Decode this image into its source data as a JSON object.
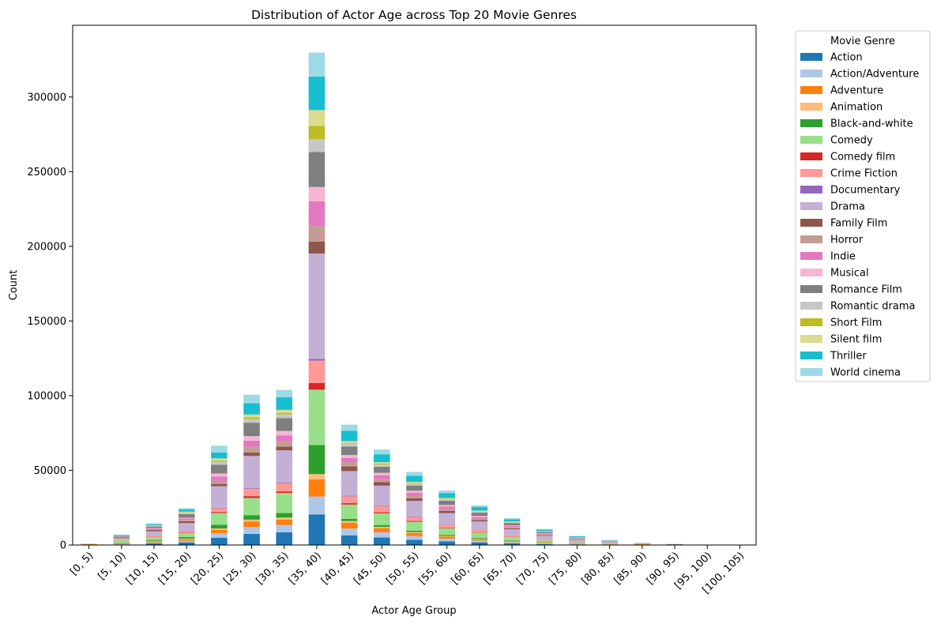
{
  "chart_data": {
    "type": "bar",
    "stacked": true,
    "title": "Distribution of Actor Age across Top 20 Movie Genres",
    "xlabel": "Actor Age Group",
    "ylabel": "Count",
    "ylim": [
      0,
      348000
    ],
    "yticks": [
      0,
      50000,
      100000,
      150000,
      200000,
      250000,
      300000
    ],
    "legend_title": "Movie Genre",
    "legend_position": "outside-top-right",
    "grid": false,
    "categories": [
      "[0, 5)",
      "[5, 10)",
      "[10, 15)",
      "[15, 20)",
      "[20, 25)",
      "[25, 30)",
      "[30, 35)",
      "[35, 40)",
      "[40, 45)",
      "[45, 50)",
      "[50, 55)",
      "[55, 60)",
      "[60, 65)",
      "[65, 70)",
      "[70, 75)",
      "[75, 80)",
      "[80, 85)",
      "[85, 90)",
      "[90, 95)",
      "[95, 100)",
      "[100, 105)"
    ],
    "series": [
      {
        "name": "Action",
        "color": "#1f77b4",
        "values": [
          80,
          400,
          1200,
          1800,
          4900,
          7500,
          8500,
          20500,
          6500,
          5000,
          3500,
          2500,
          1800,
          1200,
          600,
          350,
          200,
          150,
          40,
          10,
          5
        ]
      },
      {
        "name": "Action/Adventure",
        "color": "#aec7e8",
        "values": [
          40,
          250,
          500,
          1000,
          3000,
          4500,
          5000,
          12000,
          4500,
          3500,
          2500,
          1800,
          1200,
          700,
          400,
          200,
          100,
          80,
          20,
          5,
          2
        ]
      },
      {
        "name": "Adventure",
        "color": "#ff7f0e",
        "values": [
          400,
          500,
          700,
          1000,
          2200,
          3800,
          3500,
          11500,
          3900,
          2800,
          2000,
          1300,
          900,
          600,
          350,
          250,
          150,
          400,
          30,
          5,
          2
        ]
      },
      {
        "name": "Animation",
        "color": "#ffbb78",
        "values": [
          100,
          200,
          400,
          500,
          1000,
          1200,
          1400,
          3500,
          1200,
          900,
          700,
          500,
          400,
          300,
          200,
          150,
          100,
          50,
          10,
          5,
          1
        ]
      },
      {
        "name": "Black-and-white",
        "color": "#2ca02c",
        "values": [
          30,
          300,
          600,
          1000,
          2500,
          3000,
          3000,
          19500,
          1500,
          1200,
          900,
          700,
          500,
          400,
          250,
          150,
          80,
          40,
          10,
          2,
          1
        ]
      },
      {
        "name": "Comedy",
        "color": "#98df8a",
        "values": [
          50,
          1500,
          2000,
          2700,
          7800,
          11500,
          13500,
          37000,
          9500,
          7800,
          6000,
          4500,
          3500,
          2200,
          1300,
          700,
          400,
          100,
          50,
          10,
          5
        ]
      },
      {
        "name": "Comedy film",
        "color": "#d62728",
        "values": [
          10,
          100,
          200,
          300,
          700,
          1200,
          1000,
          4500,
          900,
          700,
          500,
          400,
          300,
          200,
          100,
          50,
          30,
          10,
          5,
          1,
          1
        ]
      },
      {
        "name": "Crime Fiction",
        "color": "#ff9896",
        "values": [
          15,
          300,
          600,
          1200,
          2500,
          5000,
          5500,
          15000,
          4600,
          4000,
          2700,
          2000,
          1500,
          1000,
          600,
          400,
          200,
          50,
          20,
          5,
          2
        ]
      },
      {
        "name": "Documentary",
        "color": "#9467bd",
        "values": [
          5,
          40,
          80,
          150,
          300,
          400,
          500,
          1200,
          400,
          350,
          250,
          200,
          150,
          100,
          80,
          50,
          30,
          20,
          300,
          1,
          1
        ]
      },
      {
        "name": "Drama",
        "color": "#c5b0d5",
        "values": [
          50,
          1000,
          3000,
          5000,
          14500,
          21500,
          21500,
          70500,
          16500,
          13500,
          10500,
          7500,
          5500,
          3800,
          2300,
          1200,
          700,
          200,
          100,
          20,
          10
        ]
      },
      {
        "name": "Family Film",
        "color": "#8c564b",
        "values": [
          20,
          500,
          800,
          1200,
          1500,
          2300,
          2500,
          8000,
          3200,
          2300,
          1700,
          1400,
          1000,
          700,
          400,
          300,
          150,
          100,
          20,
          5,
          2
        ]
      },
      {
        "name": "Horror",
        "color": "#c49c94",
        "values": [
          20,
          200,
          600,
          1000,
          2200,
          4000,
          3700,
          11000,
          2800,
          2300,
          1800,
          1500,
          1000,
          800,
          500,
          250,
          150,
          50,
          20,
          5,
          2
        ]
      },
      {
        "name": "Indie",
        "color": "#e377c2",
        "values": [
          10,
          200,
          400,
          900,
          2800,
          4000,
          3800,
          16000,
          2800,
          2400,
          2000,
          1500,
          1100,
          700,
          500,
          200,
          100,
          30,
          10,
          2,
          1
        ]
      },
      {
        "name": "Musical",
        "color": "#f7b6d2",
        "values": [
          5,
          100,
          300,
          500,
          2000,
          3000,
          3000,
          9500,
          2000,
          1600,
          1300,
          1000,
          700,
          500,
          300,
          200,
          100,
          30,
          10,
          2,
          1
        ]
      },
      {
        "name": "Romance Film",
        "color": "#7f7f7f",
        "values": [
          20,
          500,
          1000,
          2500,
          5800,
          9000,
          8600,
          23500,
          5700,
          4100,
          3500,
          2900,
          2100,
          1500,
          900,
          500,
          300,
          100,
          30,
          5,
          2
        ]
      },
      {
        "name": "Romantic drama",
        "color": "#c7c7c7",
        "values": [
          5,
          200,
          400,
          800,
          2100,
          2500,
          2500,
          8500,
          1800,
          1500,
          1200,
          900,
          700,
          500,
          300,
          200,
          100,
          20,
          10,
          2,
          1
        ]
      },
      {
        "name": "Short Film",
        "color": "#bcbd22",
        "values": [
          10,
          100,
          200,
          300,
          700,
          1000,
          1000,
          9000,
          600,
          500,
          400,
          300,
          200,
          150,
          100,
          50,
          30,
          10,
          5,
          1,
          1
        ]
      },
      {
        "name": "Silent film",
        "color": "#dbdb8d",
        "values": [
          5,
          150,
          300,
          500,
          1500,
          2000,
          2000,
          10500,
          1200,
          1000,
          800,
          600,
          500,
          400,
          200,
          100,
          50,
          10,
          5,
          1,
          1
        ]
      },
      {
        "name": "Thriller",
        "color": "#17becf",
        "values": [
          10,
          300,
          700,
          1500,
          4000,
          7500,
          8500,
          22500,
          6800,
          5300,
          4200,
          3300,
          2400,
          1500,
          900,
          500,
          250,
          50,
          20,
          5,
          2
        ]
      },
      {
        "name": "World cinema",
        "color": "#9edae5",
        "values": [
          10,
          200,
          500,
          900,
          4500,
          5800,
          4800,
          16000,
          4200,
          3200,
          2500,
          1700,
          1200,
          800,
          500,
          250,
          130,
          40,
          10,
          2,
          1
        ]
      }
    ]
  }
}
